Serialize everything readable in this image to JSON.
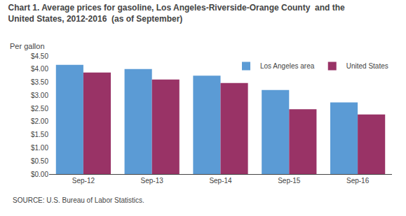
{
  "chart_data": {
    "type": "bar",
    "title": "Chart 1. Average prices for gasoline, Los Angeles-Riverside-Orange County  and the",
    "subtitle": "United States, 2012-2016  (as of September)",
    "ylabel": "Per gallon",
    "annotations": [
      "SOURCE: U.S. Bureau of Labor Statistics."
    ],
    "categories": [
      "Sep-12",
      "Sep-13",
      "Sep-14",
      "Sep-15",
      "Sep-16"
    ],
    "series": [
      {
        "name": "Los Angeles area",
        "color": "#5B9BD5",
        "values": [
          4.16,
          4.0,
          3.75,
          3.2,
          2.73
        ]
      },
      {
        "name": "United States",
        "color": "#993366",
        "values": [
          3.87,
          3.6,
          3.47,
          2.47,
          2.27
        ]
      }
    ],
    "ylim": [
      0,
      4.5
    ],
    "yticks": [
      {
        "value": 0.0,
        "label": "$0.00"
      },
      {
        "value": 0.5,
        "label": "$0.50"
      },
      {
        "value": 1.0,
        "label": "$1.00"
      },
      {
        "value": 1.5,
        "label": "$1.50"
      },
      {
        "value": 2.0,
        "label": "$2.00"
      },
      {
        "value": 2.5,
        "label": "$2.50"
      },
      {
        "value": 3.0,
        "label": "$3.00"
      },
      {
        "value": 3.5,
        "label": "$3.50"
      },
      {
        "value": 4.0,
        "label": "$4.00"
      },
      {
        "value": 4.5,
        "label": "$4.50"
      }
    ],
    "grid": false,
    "legend": "upper right"
  }
}
